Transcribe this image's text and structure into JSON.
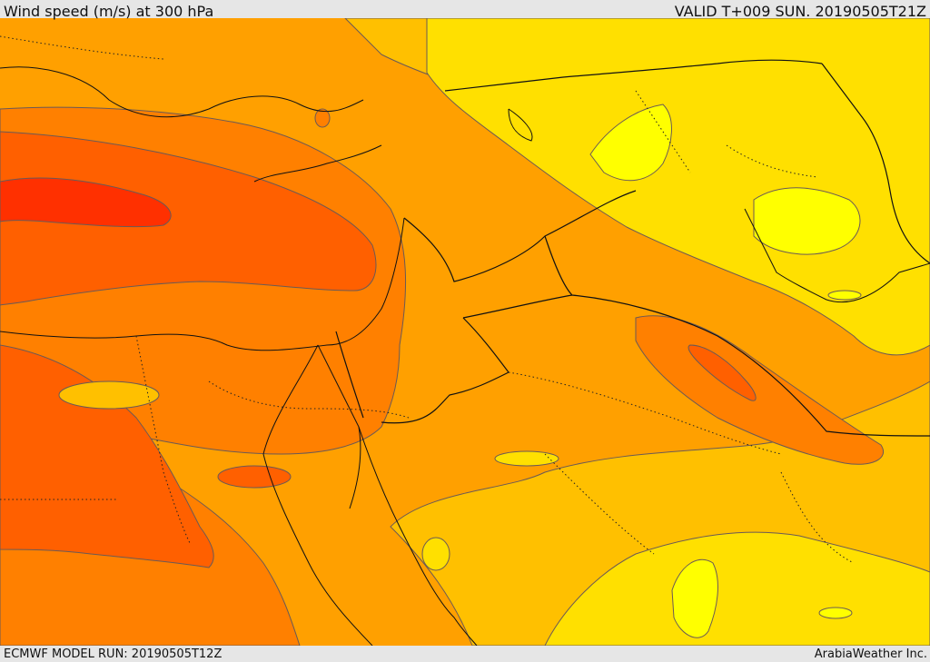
{
  "header": {
    "title": "Wind speed (m/s) at 300 hPa",
    "valid": "VALID T+009 SUN. 20190505T21Z"
  },
  "footer": {
    "model_run": "ECMWF MODEL RUN: 20190505T12Z",
    "credit": "ArabiaWeather Inc."
  },
  "colors": {
    "band_1": "#ffff00",
    "band_2": "#ffe000",
    "band_3": "#ffc000",
    "band_4": "#ffa000",
    "band_5": "#ff8000",
    "band_6": "#ff6000",
    "band_7": "#ff3000",
    "contour": "#6b5a55",
    "border": "#111111"
  }
}
